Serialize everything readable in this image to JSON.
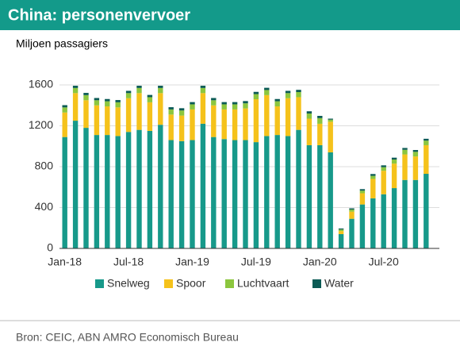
{
  "chart_data": {
    "type": "stacked_bar",
    "title": "China: personenvervoer",
    "y_label": "Miljoen passagiers",
    "source": "Bron: CEIC, ABN AMRO Economisch Bureau",
    "categories": [
      "Jan-18",
      null,
      null,
      null,
      null,
      null,
      "Jul-18",
      null,
      null,
      null,
      null,
      null,
      "Jan-19",
      null,
      null,
      null,
      null,
      null,
      "Jul-19",
      null,
      null,
      null,
      null,
      null,
      "Jan-20",
      null,
      null,
      null,
      null,
      null,
      "Jul-20",
      null,
      null,
      null,
      null
    ],
    "series": [
      {
        "name": "Snelweg",
        "color": "#17998a",
        "values": [
          1090,
          1250,
          1180,
          1110,
          1110,
          1100,
          1140,
          1160,
          1150,
          1210,
          1060,
          1050,
          1060,
          1220,
          1090,
          1070,
          1060,
          1060,
          1040,
          1100,
          1110,
          1100,
          1160,
          1010,
          1010,
          940,
          140,
          290,
          430,
          490,
          530,
          590,
          670,
          670,
          730
        ]
      },
      {
        "name": "Spoor",
        "color": "#f5c21b",
        "values": [
          240,
          270,
          270,
          290,
          280,
          280,
          330,
          360,
          280,
          310,
          250,
          250,
          300,
          300,
          310,
          290,
          300,
          310,
          420,
          400,
          280,
          370,
          320,
          260,
          210,
          300,
          30,
          70,
          110,
          190,
          230,
          240,
          250,
          230,
          280
        ]
      },
      {
        "name": "Luchtvaart",
        "color": "#8cc63e",
        "values": [
          50,
          50,
          50,
          50,
          50,
          50,
          50,
          50,
          50,
          50,
          50,
          50,
          50,
          50,
          50,
          50,
          50,
          50,
          50,
          50,
          50,
          50,
          50,
          50,
          55,
          20,
          15,
          20,
          25,
          30,
          35,
          40,
          45,
          45,
          45
        ]
      },
      {
        "name": "Water",
        "color": "#0b5b55",
        "values": [
          22,
          22,
          22,
          22,
          22,
          22,
          22,
          22,
          22,
          22,
          22,
          22,
          22,
          22,
          22,
          22,
          22,
          22,
          22,
          22,
          22,
          22,
          22,
          22,
          22,
          10,
          10,
          12,
          15,
          18,
          18,
          18,
          18,
          18,
          18
        ]
      }
    ],
    "ylim": [
      0,
      1600
    ],
    "yticks": [
      0,
      400,
      800,
      1200,
      1600
    ],
    "grid": true
  }
}
